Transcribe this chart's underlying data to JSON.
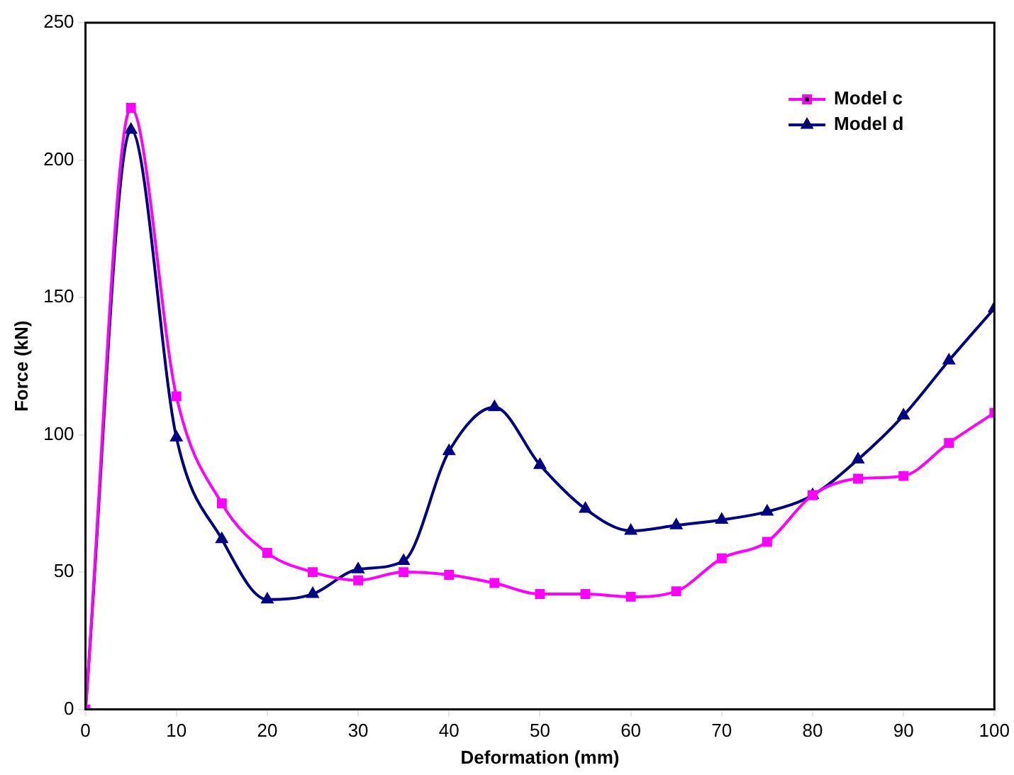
{
  "chart_data": {
    "type": "line",
    "xlabel": "Deformation (mm)",
    "ylabel": "Force (kN)",
    "x": [
      0,
      5,
      10,
      15,
      20,
      25,
      30,
      35,
      40,
      45,
      50,
      55,
      60,
      65,
      70,
      75,
      80,
      85,
      90,
      95,
      100
    ],
    "series": [
      {
        "name": "Model c",
        "color": "#ff00ff",
        "marker": "square",
        "values": [
          0,
          219,
          114,
          75,
          57,
          50,
          47,
          50,
          49,
          46,
          42,
          42,
          41,
          43,
          55,
          61,
          78,
          84,
          85,
          97,
          108
        ]
      },
      {
        "name": "Model d",
        "color": "#000080",
        "marker": "triangle",
        "values": [
          0,
          211,
          99,
          62,
          40,
          42,
          51,
          54,
          94,
          110,
          89,
          73,
          65,
          67,
          69,
          72,
          78,
          91,
          107,
          127,
          146
        ]
      }
    ],
    "xlim": [
      0,
      100
    ],
    "xticks": [
      0,
      10,
      20,
      30,
      40,
      50,
      60,
      70,
      80,
      90,
      100
    ],
    "ylim": [
      0,
      250
    ],
    "yticks": [
      0,
      50,
      100,
      150,
      200,
      250
    ],
    "grid": false,
    "legend": "top right",
    "line_style": "solid"
  }
}
